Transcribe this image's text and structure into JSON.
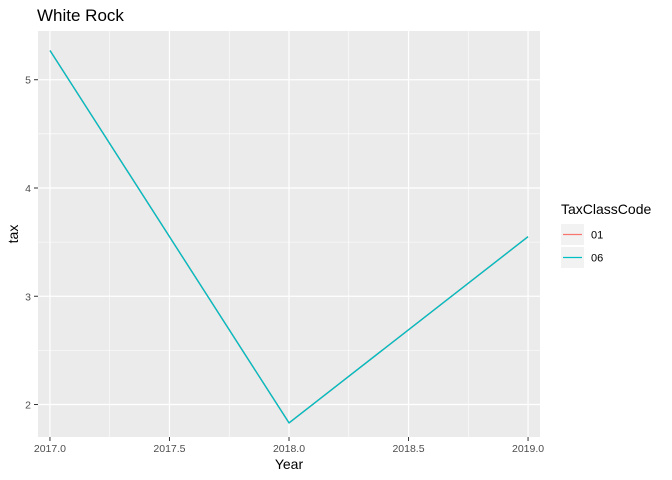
{
  "chart_data": {
    "type": "line",
    "title": "White Rock",
    "xlabel": "Year",
    "ylabel": "tax",
    "xlim": [
      2016.95,
      2019.05
    ],
    "ylim": [
      1.7,
      5.45
    ],
    "x_ticks": [
      "2017.0",
      "2017.5",
      "2018.0",
      "2018.5",
      "2019.0"
    ],
    "y_ticks": [
      "2",
      "3",
      "4",
      "5"
    ],
    "grid": true,
    "legend": {
      "title": "TaxClassCode",
      "position": "right",
      "entries": [
        {
          "label": "01",
          "color": "#F8766D"
        },
        {
          "label": "06",
          "color": "#00BFC4"
        }
      ]
    },
    "series": [
      {
        "name": "01",
        "color": "#F8766D",
        "x": [
          2017,
          2018,
          2019
        ],
        "y": [
          5.27,
          1.83,
          3.55
        ]
      },
      {
        "name": "06",
        "color": "#00BFC4",
        "x": [
          2017,
          2018,
          2019
        ],
        "y": [
          5.27,
          1.83,
          3.55
        ]
      }
    ],
    "colors": {
      "panel": "#EBEBEB",
      "grid": "#FFFFFF",
      "tick_text": "#4D4D4D"
    }
  }
}
